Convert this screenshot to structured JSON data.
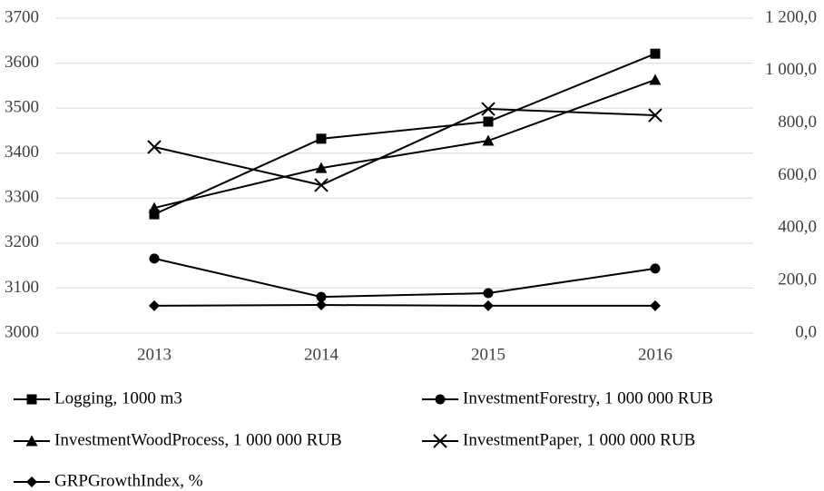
{
  "chart_data": {
    "type": "line",
    "categories": [
      "2013",
      "2014",
      "2015",
      "2016"
    ],
    "ylim": [
      3000,
      3700
    ],
    "yticks": [
      3000,
      3100,
      3200,
      3300,
      3400,
      3500,
      3600,
      3700
    ],
    "y2lim": [
      0,
      1200
    ],
    "y2ticks": [
      {
        "value": 0,
        "label": "0,0"
      },
      {
        "value": 200,
        "label": "200,0"
      },
      {
        "value": 400,
        "label": "400,0"
      },
      {
        "value": 600,
        "label": "600,0"
      },
      {
        "value": 800,
        "label": "800,0"
      },
      {
        "value": 1000,
        "label": "1 000,0"
      },
      {
        "value": 1200,
        "label": "1 200,0"
      }
    ],
    "grid": true,
    "legend": "bottom",
    "series": [
      {
        "name": "Logging, 1000 m3",
        "color": "#000000",
        "marker": "square",
        "values": [
          3264,
          3432,
          3470,
          3621
        ]
      },
      {
        "name": "InvestmentForestry, 1 000 000 RUB",
        "color": "#000000",
        "marker": "circle",
        "axis": "y2",
        "values": [
          284,
          138,
          152,
          246
        ]
      },
      {
        "name": "InvestmentWoodProcess, 1 000 000 RUB",
        "color": "#000000",
        "marker": "triangle",
        "axis": "y2",
        "values": [
          477,
          629,
          733,
          965
        ]
      },
      {
        "name": "InvestmentPaper, 1 000 000 RUB",
        "color": "#000000",
        "marker": "x",
        "axis": "y2",
        "values": [
          709,
          564,
          854,
          830
        ]
      },
      {
        "name": "GRPGrowthIndex, %",
        "color": "#000000",
        "marker": "diamond",
        "axis": "y2",
        "values": [
          104,
          107,
          104,
          104
        ]
      }
    ]
  }
}
